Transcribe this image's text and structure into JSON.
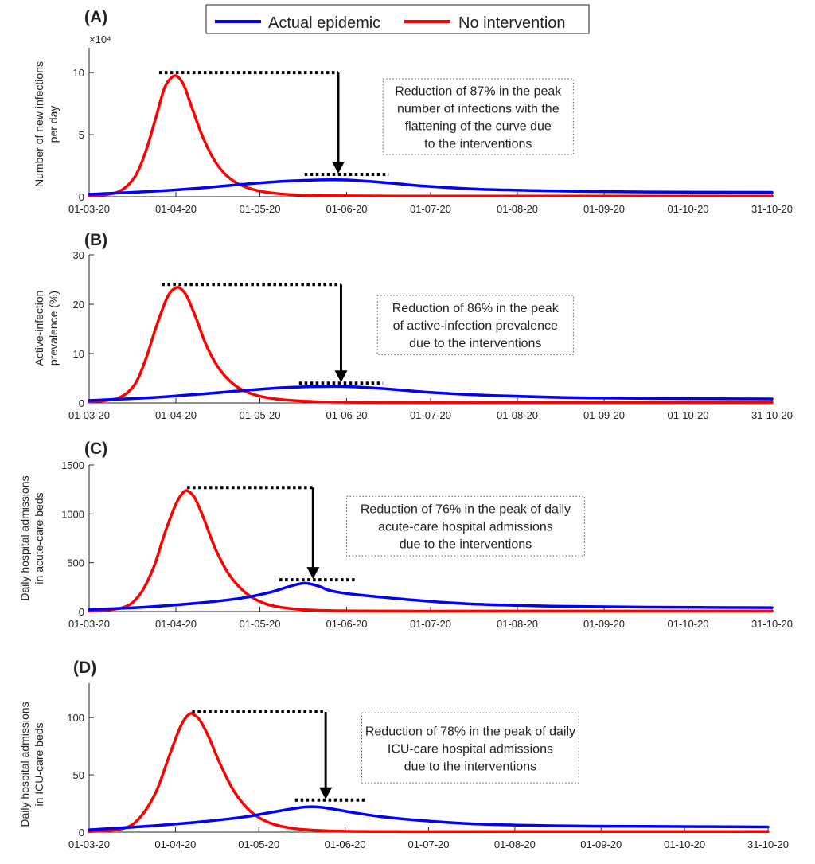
{
  "legend": {
    "actual": "Actual epidemic",
    "nointervention": "No intervention"
  },
  "colors": {
    "actual": "#0000FF",
    "nointervention": "#FF0000",
    "ink": "#000000",
    "axis": "#262626"
  },
  "chart_data": [
    {
      "type": "line",
      "panel": "(A)",
      "ylabel": [
        "Number of new infections",
        "per day"
      ],
      "exponent": "×10⁴",
      "ylim": [
        0,
        12
      ],
      "yticks": [
        0,
        5,
        10
      ],
      "xlim": [
        0,
        244
      ],
      "xticks": [
        {
          "pos": 0,
          "label": "01-03-20"
        },
        {
          "pos": 31,
          "label": "01-04-20"
        },
        {
          "pos": 61,
          "label": "01-05-20"
        },
        {
          "pos": 92,
          "label": "01-06-20"
        },
        {
          "pos": 122,
          "label": "01-07-20"
        },
        {
          "pos": 153,
          "label": "01-08-20"
        },
        {
          "pos": 184,
          "label": "01-09-20"
        },
        {
          "pos": 214,
          "label": "01-10-20"
        },
        {
          "pos": 244,
          "label": "31-10-20"
        }
      ],
      "series": [
        {
          "name": "No intervention",
          "key": "nointervention",
          "x": [
            0,
            10,
            16,
            20,
            24,
            27,
            30,
            32,
            34,
            37,
            41,
            46,
            52,
            60,
            70,
            85,
            110,
            150,
            244
          ],
          "y": [
            0.05,
            0.35,
            1.5,
            3.5,
            6.5,
            8.8,
            9.7,
            9.6,
            8.9,
            7.0,
            4.6,
            2.5,
            1.2,
            0.5,
            0.2,
            0.08,
            0.05,
            0.05,
            0.05
          ]
        },
        {
          "name": "Actual epidemic",
          "key": "actual",
          "x": [
            0,
            20,
            40,
            55,
            70,
            82,
            92,
            105,
            120,
            140,
            170,
            200,
            244
          ],
          "y": [
            0.2,
            0.4,
            0.7,
            1.0,
            1.25,
            1.35,
            1.35,
            1.15,
            0.85,
            0.6,
            0.45,
            0.38,
            0.35
          ]
        }
      ],
      "peaks": {
        "top": 10.0,
        "bottom": 1.8,
        "arrow_x": 89,
        "top_x": [
          25,
          89
        ],
        "bottom_x": [
          77,
          107
        ]
      },
      "annotation": {
        "lines": [
          "Reduction of 87% in the peak",
          "number of infections with the",
          "flattening of the curve due",
          "to the interventions"
        ],
        "box": {
          "x0": 105,
          "x1": 173,
          "y0": 3.4,
          "y1": 9.5
        }
      }
    },
    {
      "type": "line",
      "panel": "(B)",
      "ylabel": [
        "Active-infection",
        "prevalence (%)"
      ],
      "ylim": [
        0,
        30
      ],
      "yticks": [
        0,
        10,
        20,
        30
      ],
      "xlim": [
        0,
        244
      ],
      "xticks": [
        {
          "pos": 0,
          "label": "01-03-20"
        },
        {
          "pos": 31,
          "label": "01-04-20"
        },
        {
          "pos": 61,
          "label": "01-05-20"
        },
        {
          "pos": 92,
          "label": "01-06-20"
        },
        {
          "pos": 122,
          "label": "01-07-20"
        },
        {
          "pos": 153,
          "label": "01-08-20"
        },
        {
          "pos": 184,
          "label": "01-09-20"
        },
        {
          "pos": 214,
          "label": "01-10-20"
        },
        {
          "pos": 244,
          "label": "31-10-20"
        }
      ],
      "series": [
        {
          "name": "No intervention",
          "key": "nointervention",
          "x": [
            0,
            10,
            16,
            20,
            24,
            28,
            31,
            33,
            35,
            38,
            42,
            47,
            53,
            60,
            70,
            85,
            110,
            150,
            244
          ],
          "y": [
            0.2,
            0.9,
            3.5,
            8.5,
            15.5,
            21.5,
            23.3,
            23.0,
            21.5,
            17.5,
            11.5,
            6.5,
            3.2,
            1.5,
            0.6,
            0.2,
            0.1,
            0.1,
            0.1
          ]
        },
        {
          "name": "Actual epidemic",
          "key": "actual",
          "x": [
            0,
            20,
            40,
            55,
            70,
            82,
            92,
            105,
            120,
            140,
            170,
            200,
            244
          ],
          "y": [
            0.5,
            1.0,
            1.8,
            2.5,
            3.1,
            3.3,
            3.3,
            2.9,
            2.2,
            1.6,
            1.1,
            0.9,
            0.8
          ]
        }
      ],
      "peaks": {
        "top": 24.0,
        "bottom": 4.0,
        "arrow_x": 90,
        "top_x": [
          26,
          90
        ],
        "bottom_x": [
          75,
          105
        ]
      },
      "annotation": {
        "lines": [
          "Reduction of 86% in the peak",
          "of active-infection prevalence",
          "due to the interventions"
        ],
        "box": {
          "x0": 103,
          "x1": 173,
          "y0": 9.8,
          "y1": 21.8
        }
      }
    },
    {
      "type": "line",
      "panel": "(C)",
      "ylabel": [
        "Daily hospital admissions",
        "in acute-care beds"
      ],
      "ylim": [
        0,
        1500
      ],
      "yticks": [
        0,
        500,
        1000,
        1500
      ],
      "xlim": [
        0,
        244
      ],
      "xticks": [
        {
          "pos": 0,
          "label": "01-03-20"
        },
        {
          "pos": 31,
          "label": "01-04-20"
        },
        {
          "pos": 61,
          "label": "01-05-20"
        },
        {
          "pos": 92,
          "label": "01-06-20"
        },
        {
          "pos": 122,
          "label": "01-07-20"
        },
        {
          "pos": 153,
          "label": "01-08-20"
        },
        {
          "pos": 184,
          "label": "01-09-20"
        },
        {
          "pos": 214,
          "label": "01-10-20"
        },
        {
          "pos": 244,
          "label": "31-10-20"
        }
      ],
      "series": [
        {
          "name": "No intervention",
          "key": "nointervention",
          "x": [
            0,
            12,
            18,
            23,
            27,
            31,
            34,
            36,
            38,
            41,
            45,
            50,
            56,
            63,
            72,
            85,
            110,
            150,
            244
          ],
          "y": [
            5,
            40,
            170,
            450,
            800,
            1100,
            1230,
            1220,
            1150,
            950,
            650,
            380,
            190,
            80,
            30,
            10,
            5,
            5,
            5
          ]
        },
        {
          "name": "Actual epidemic",
          "key": "actual",
          "x": [
            0,
            20,
            40,
            55,
            65,
            72,
            77,
            82,
            86,
            92,
            100,
            115,
            135,
            165,
            200,
            244
          ],
          "y": [
            20,
            45,
            90,
            140,
            200,
            260,
            290,
            260,
            215,
            185,
            160,
            120,
            80,
            55,
            45,
            40
          ]
        }
      ],
      "peaks": {
        "top": 1270,
        "bottom": 325,
        "arrow_x": 80,
        "top_x": [
          35,
          80
        ],
        "bottom_x": [
          68,
          95
        ]
      },
      "annotation": {
        "lines": [
          "Reduction of 76% in the peak of daily",
          "acute-care hospital admissions",
          "due to the interventions"
        ],
        "box": {
          "x0": 92,
          "x1": 177,
          "y0": 570,
          "y1": 1180
        }
      }
    },
    {
      "type": "line",
      "panel": "(D)",
      "ylabel": [
        "Daily hospital admissions",
        "in ICU-care beds"
      ],
      "ylim": [
        0,
        130
      ],
      "yticks": [
        0,
        50,
        100
      ],
      "xlim": [
        0,
        244
      ],
      "xticks": [
        {
          "pos": 0,
          "label": "01-03-20"
        },
        {
          "pos": 31,
          "label": "01-04-20"
        },
        {
          "pos": 61,
          "label": "01-05-20"
        },
        {
          "pos": 92,
          "label": "01-06-20"
        },
        {
          "pos": 122,
          "label": "01-07-20"
        },
        {
          "pos": 153,
          "label": "01-08-20"
        },
        {
          "pos": 184,
          "label": "01-09-20"
        },
        {
          "pos": 214,
          "label": "01-10-20"
        },
        {
          "pos": 244,
          "label": "31-10-20"
        }
      ],
      "series": [
        {
          "name": "No intervention",
          "key": "nointervention",
          "x": [
            0,
            12,
            18,
            24,
            29,
            33,
            36,
            38,
            40,
            43,
            47,
            52,
            58,
            65,
            74,
            88,
            110,
            150,
            244
          ],
          "y": [
            0.5,
            3,
            12,
            35,
            68,
            93,
            103,
            102,
            97,
            83,
            60,
            36,
            18,
            8,
            3,
            1,
            0.5,
            0.5,
            0.5
          ]
        },
        {
          "name": "Actual epidemic",
          "key": "actual",
          "x": [
            0,
            20,
            40,
            55,
            65,
            72,
            78,
            82,
            88,
            95,
            105,
            120,
            140,
            170,
            200,
            244
          ],
          "y": [
            2,
            5,
            9,
            13,
            17,
            20,
            22,
            22,
            20,
            17,
            13.5,
            10,
            7,
            5.5,
            5,
            4.5
          ]
        }
      ],
      "peaks": {
        "top": 105,
        "bottom": 28,
        "arrow_x": 85,
        "top_x": [
          37,
          85
        ],
        "bottom_x": [
          74,
          100
        ]
      },
      "annotation": {
        "lines": [
          "Reduction of 78% in the peak of daily",
          "ICU-care hospital admissions",
          "due to the interventions"
        ],
        "box": {
          "x0": 98,
          "x1": 176,
          "y0": 43,
          "y1": 104
        }
      }
    }
  ]
}
